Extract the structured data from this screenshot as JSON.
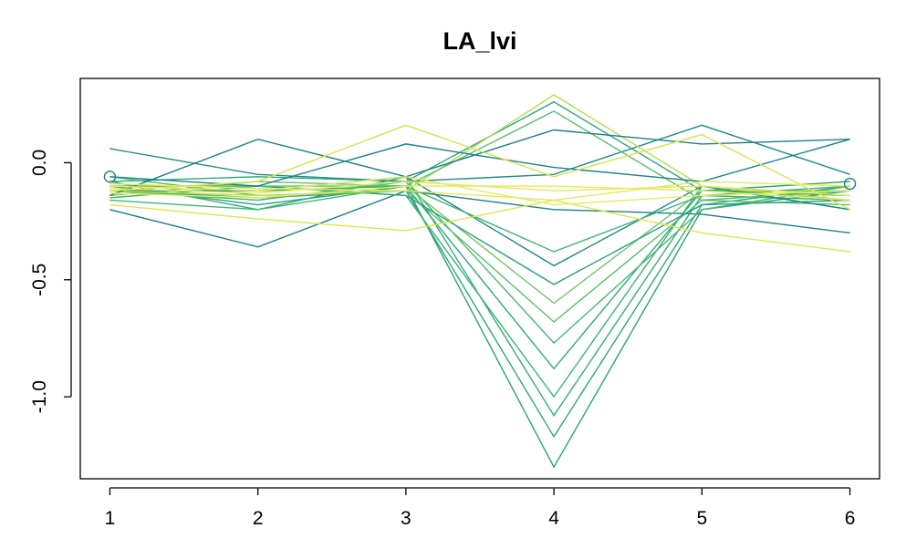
{
  "chart_data": {
    "type": "line",
    "title": "LA_lvi",
    "xlabel": "",
    "ylabel": "",
    "x_ticks": [
      "1",
      "2",
      "3",
      "4",
      "5",
      "6"
    ],
    "y_ticks": [
      "0.0",
      "-0.5",
      "-1.0"
    ],
    "xlim": [
      0.8,
      6.2
    ],
    "ylim": [
      -1.35,
      0.36
    ],
    "grid": false,
    "legend": "none",
    "palette": {
      "dark": "#1a7f8a",
      "mid": "#35b27a",
      "light": "#9fd55a",
      "yellow": "#e8ea55",
      "axis": "#000000"
    },
    "series": [
      {
        "name": "",
        "color": "#1e8c8a",
        "values": [
          0.06,
          -0.05,
          -0.08,
          -0.05,
          0.16,
          -0.05
        ]
      },
      {
        "name": "",
        "color": "#1a7f8a",
        "values": [
          -0.2,
          -0.36,
          -0.12,
          -0.2,
          -0.22,
          -0.3
        ]
      },
      {
        "name": "",
        "color": "#2aa07e",
        "values": [
          -0.1,
          -0.18,
          -0.1,
          -1.3,
          -0.2,
          -0.12
        ]
      },
      {
        "name": "",
        "color": "#2ea67c",
        "values": [
          -0.12,
          -0.15,
          -0.12,
          -1.17,
          -0.18,
          -0.1
        ]
      },
      {
        "name": "",
        "color": "#34ad78",
        "values": [
          -0.08,
          -0.2,
          -0.06,
          -1.08,
          -0.14,
          -0.16
        ]
      },
      {
        "name": "",
        "color": "#3ab376",
        "values": [
          -0.15,
          -0.1,
          -0.14,
          -1.0,
          -0.1,
          -0.2
        ]
      },
      {
        "name": "",
        "color": "#30a97a",
        "values": [
          -0.1,
          -0.12,
          -0.1,
          -0.88,
          -0.12,
          -0.14
        ]
      },
      {
        "name": "",
        "color": "#47b873",
        "values": [
          -0.12,
          -0.16,
          -0.08,
          -0.77,
          -0.2,
          -0.1
        ]
      },
      {
        "name": "",
        "color": "#5abf6d",
        "values": [
          -0.06,
          -0.14,
          -0.12,
          -0.68,
          -0.16,
          -0.18
        ]
      },
      {
        "name": "",
        "color": "#70c766",
        "values": [
          -0.14,
          -0.08,
          -0.1,
          -0.6,
          -0.12,
          -0.12
        ]
      },
      {
        "name": "",
        "color": "#2b9f80",
        "values": [
          -0.1,
          -0.1,
          -0.14,
          -0.52,
          -0.18,
          -0.16
        ]
      },
      {
        "name": "",
        "color": "#1d8a88",
        "values": [
          -0.12,
          -0.12,
          -0.06,
          -0.44,
          -0.1,
          -0.2
        ]
      },
      {
        "name": "",
        "color": "#41b574",
        "values": [
          -0.16,
          -0.2,
          -0.1,
          -0.38,
          -0.14,
          -0.1
        ]
      },
      {
        "name": "",
        "color": "#2fa47c",
        "values": [
          -0.08,
          -0.06,
          -0.08,
          0.26,
          -0.12,
          -0.08
        ]
      },
      {
        "name": "",
        "color": "#b5dc4f",
        "values": [
          -0.12,
          -0.14,
          -0.12,
          0.29,
          -0.1,
          -0.16
        ]
      },
      {
        "name": "",
        "color": "#55bd6e",
        "values": [
          -0.1,
          -0.1,
          -0.1,
          0.22,
          -0.16,
          -0.12
        ]
      },
      {
        "name": "",
        "color": "#1a8088",
        "values": [
          -0.14,
          0.1,
          -0.06,
          0.14,
          0.08,
          0.1
        ]
      },
      {
        "name": "",
        "color": "#1b8288",
        "values": [
          -0.06,
          -0.1,
          0.08,
          -0.02,
          -0.08,
          0.1
        ]
      },
      {
        "name": "",
        "color": "#d7e44a",
        "values": [
          -0.12,
          -0.08,
          0.16,
          -0.06,
          0.12,
          -0.2
        ]
      },
      {
        "name": "",
        "color": "#dfe64c",
        "values": [
          -0.18,
          -0.24,
          -0.29,
          -0.16,
          -0.3,
          -0.38
        ]
      },
      {
        "name": "",
        "color": "#e2e85a",
        "values": [
          -0.11,
          -0.13,
          -0.08,
          -0.12,
          -0.1,
          -0.14
        ]
      },
      {
        "name": "",
        "color": "#e4e95c",
        "values": [
          -0.09,
          -0.11,
          -0.12,
          -0.16,
          -0.08,
          -0.1
        ]
      },
      {
        "name": "",
        "color": "#e6ea5e",
        "values": [
          -0.13,
          -0.15,
          -0.1,
          -0.1,
          -0.12,
          -0.16
        ]
      },
      {
        "name": "",
        "color": "#e8ea60",
        "values": [
          -0.1,
          -0.12,
          -0.06,
          -0.18,
          -0.14,
          -0.12
        ]
      }
    ],
    "markers": [
      {
        "x": 1,
        "y": -0.06
      },
      {
        "x": 6,
        "y": -0.09
      }
    ]
  }
}
